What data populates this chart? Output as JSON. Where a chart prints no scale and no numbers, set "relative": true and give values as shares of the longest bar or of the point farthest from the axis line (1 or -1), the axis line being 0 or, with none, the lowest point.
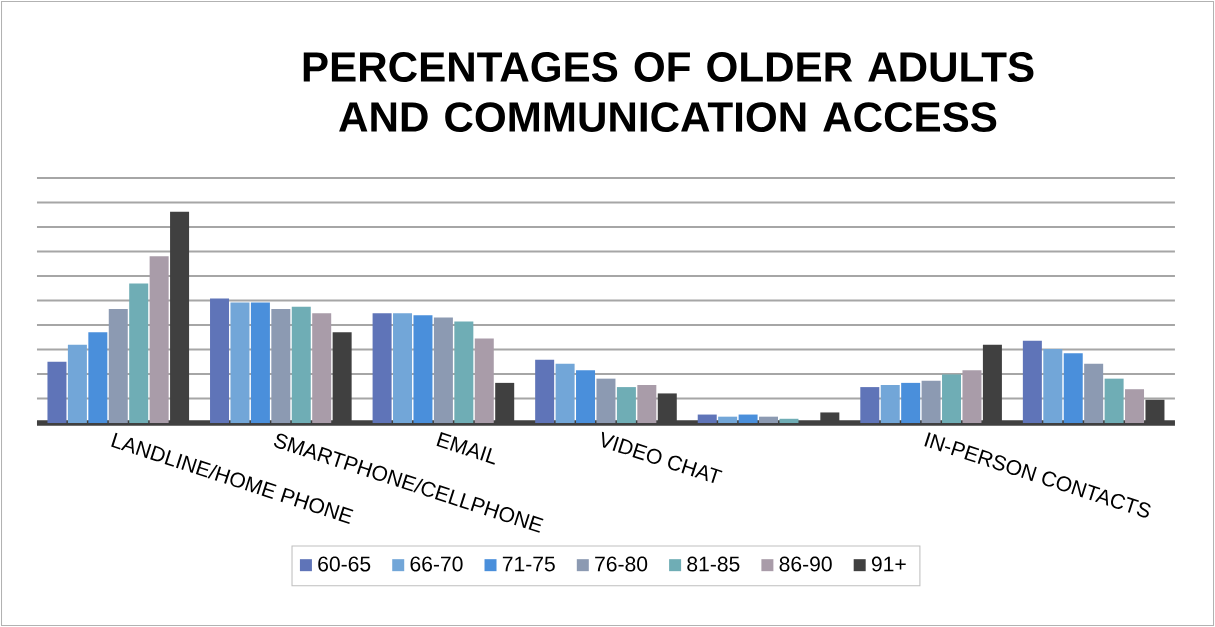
{
  "chart_data": {
    "type": "bar",
    "title": "PERCENTAGES OF OLDER ADULTS AND COMMUNICATION ACCESS",
    "relative": true,
    "grid": "y",
    "legend": "bottom",
    "categories": [
      "LANDLINE/HOME PHONE",
      "SMARTPHONE/CELLPHONE",
      "EMAIL",
      "VIDEO CHAT",
      null,
      "IN-PERSON CONTACTS",
      null
    ],
    "series": [
      {
        "name": "60-65",
        "color": "#5f74b8",
        "values": [
          0.29,
          0.59,
          0.52,
          0.3,
          0.04,
          0.17,
          0.39
        ]
      },
      {
        "name": "66-70",
        "color": "#72a6d8",
        "values": [
          0.37,
          0.57,
          0.52,
          0.28,
          0.03,
          0.18,
          0.35
        ]
      },
      {
        "name": "71-75",
        "color": "#4a8fdb",
        "values": [
          0.43,
          0.57,
          0.51,
          0.25,
          0.04,
          0.19,
          0.33
        ]
      },
      {
        "name": "76-80",
        "color": "#8c9ab2",
        "values": [
          0.54,
          0.54,
          0.5,
          0.21,
          0.03,
          0.2,
          0.28
        ]
      },
      {
        "name": "81-85",
        "color": "#6fadb5",
        "values": [
          0.66,
          0.55,
          0.48,
          0.17,
          0.02,
          0.23,
          0.21
        ]
      },
      {
        "name": "86-90",
        "color": "#a99ca9",
        "values": [
          0.79,
          0.52,
          0.4,
          0.18,
          0,
          0.25,
          0.16
        ]
      },
      {
        "name": "91+",
        "color": "#404040",
        "values": [
          1,
          0.43,
          0.19,
          0.14,
          0.05,
          0.37,
          0.11
        ]
      }
    ]
  }
}
